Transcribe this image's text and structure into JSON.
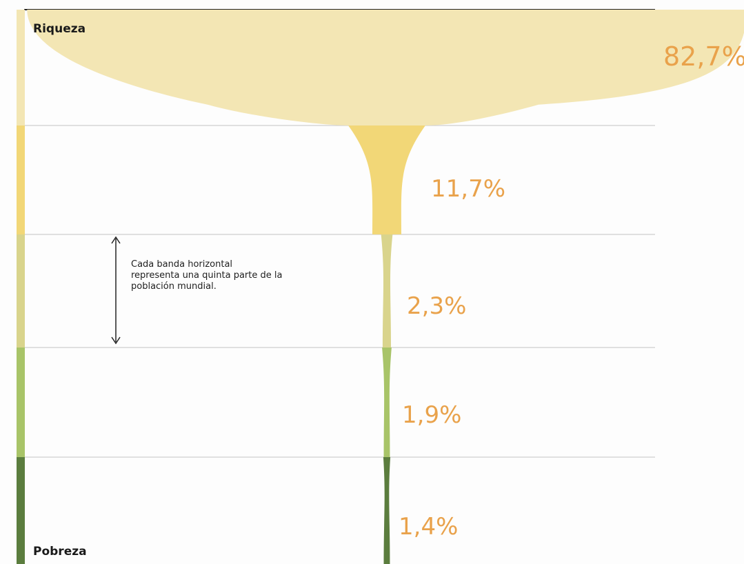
{
  "labels": {
    "top": "Riqueza",
    "bottom": "Pobreza",
    "note": "Cada banda horizontal representa una quinta parte de la población mundial."
  },
  "colors": {
    "percent_text": "#e9a24b",
    "band_colors": [
      "#f3e6b4",
      "#f2d777",
      "#d9d48c",
      "#a8c468",
      "#5b7d3e"
    ],
    "rule": "#cfcfcf",
    "top_rule": "#222222"
  },
  "chart_data": {
    "type": "area",
    "title": "",
    "xlabel": "",
    "ylabel": "",
    "categories": [
      "1",
      "2",
      "3",
      "4",
      "5"
    ],
    "values": [
      82.7,
      11.7,
      2.3,
      1.9,
      1.4
    ],
    "value_labels": [
      "82,7%",
      "11,7%",
      "2,3%",
      "1,9%",
      "1,4%"
    ],
    "unit": "%"
  }
}
